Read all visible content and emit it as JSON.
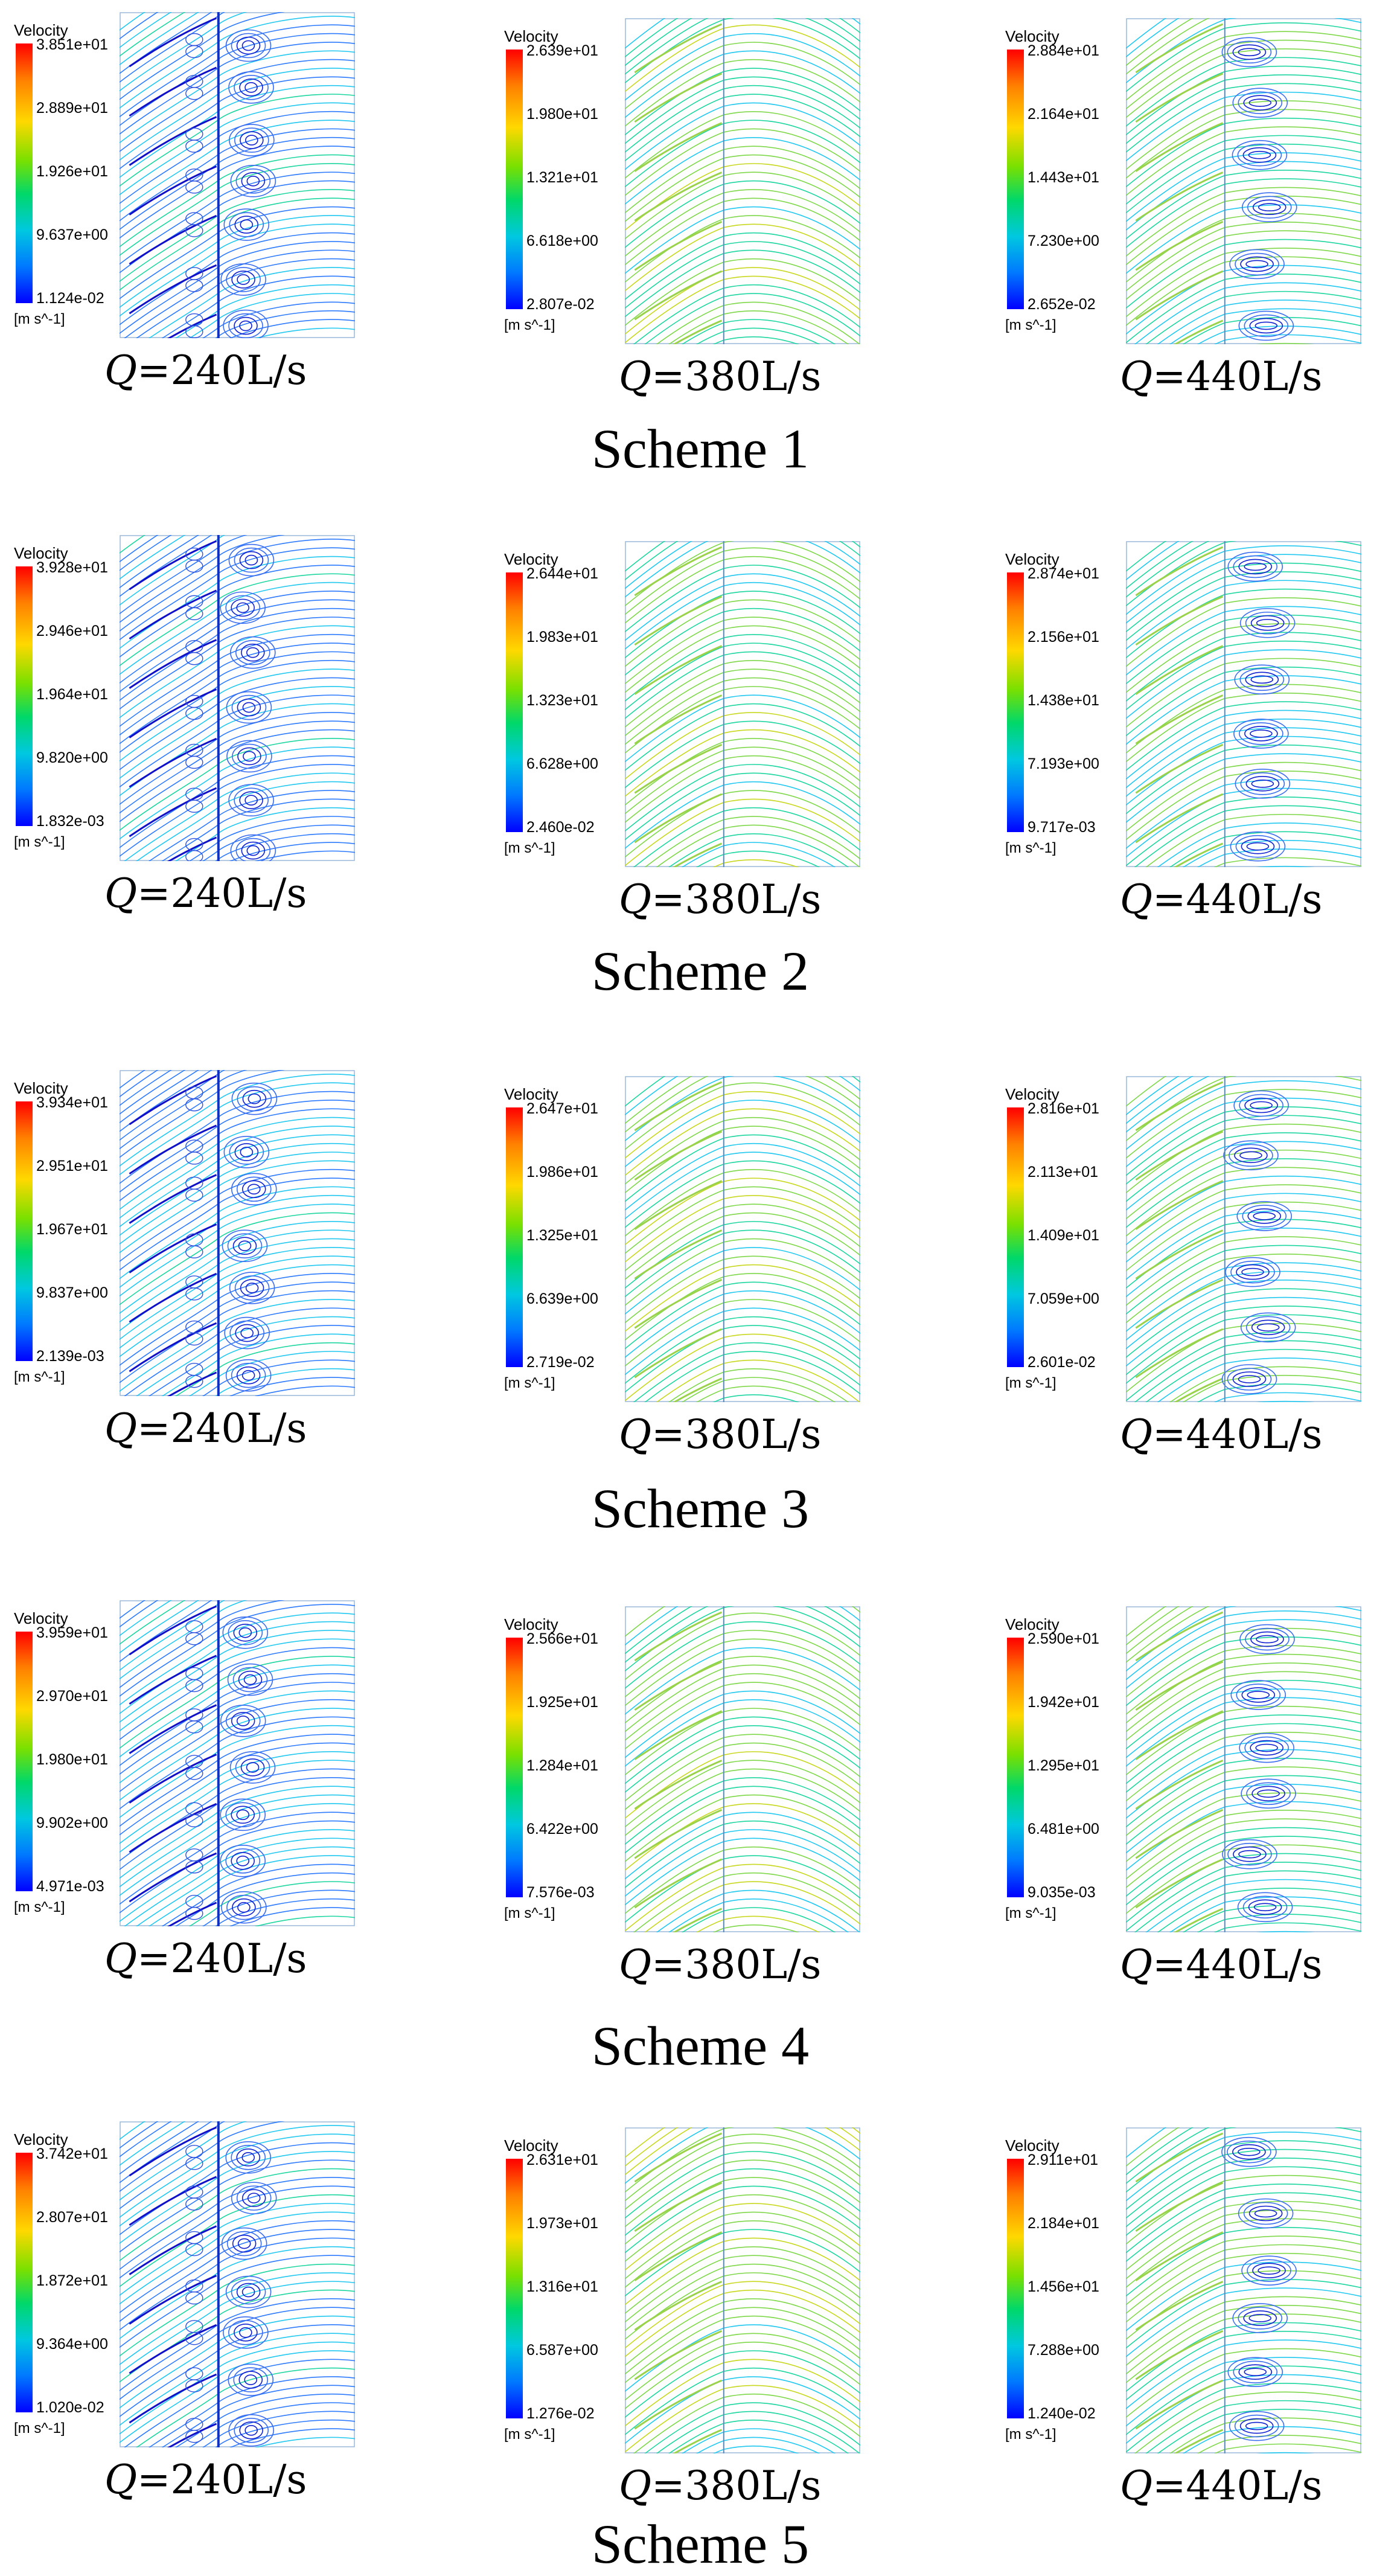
{
  "legend": {
    "title": "Velocity",
    "unit": "[m s^-1]"
  },
  "flow_prefix": "Q",
  "schemes": [
    {
      "title": "Scheme 1",
      "panels": [
        {
          "flow": "=240L/s",
          "ticks": [
            "3.851e+01",
            "2.889e+01",
            "1.926e+01",
            "9.637e+00",
            "1.124e-02"
          ],
          "pattern": "vortex"
        },
        {
          "flow": "=380L/s",
          "ticks": [
            "2.639e+01",
            "1.980e+01",
            "1.321e+01",
            "6.618e+00",
            "2.807e-02"
          ],
          "pattern": "smooth"
        },
        {
          "flow": "=440L/s",
          "ticks": [
            "2.884e+01",
            "2.164e+01",
            "1.443e+01",
            "7.230e+00",
            "2.652e-02"
          ],
          "pattern": "separated"
        }
      ]
    },
    {
      "title": "Scheme 2",
      "panels": [
        {
          "flow": "=240L/s",
          "ticks": [
            "3.928e+01",
            "2.946e+01",
            "1.964e+01",
            "9.820e+00",
            "1.832e-03"
          ],
          "pattern": "vortex"
        },
        {
          "flow": "=380L/s",
          "ticks": [
            "2.644e+01",
            "1.983e+01",
            "1.323e+01",
            "6.628e+00",
            "2.460e-02"
          ],
          "pattern": "smooth"
        },
        {
          "flow": "=440L/s",
          "ticks": [
            "2.874e+01",
            "2.156e+01",
            "1.438e+01",
            "7.193e+00",
            "9.717e-03"
          ],
          "pattern": "separated"
        }
      ]
    },
    {
      "title": "Scheme 3",
      "panels": [
        {
          "flow": "=240L/s",
          "ticks": [
            "3.934e+01",
            "2.951e+01",
            "1.967e+01",
            "9.837e+00",
            "2.139e-03"
          ],
          "pattern": "vortex"
        },
        {
          "flow": "=380L/s",
          "ticks": [
            "2.647e+01",
            "1.986e+01",
            "1.325e+01",
            "6.639e+00",
            "2.719e-02"
          ],
          "pattern": "smooth"
        },
        {
          "flow": "=440L/s",
          "ticks": [
            "2.816e+01",
            "2.113e+01",
            "1.409e+01",
            "7.059e+00",
            "2.601e-02"
          ],
          "pattern": "separated"
        }
      ]
    },
    {
      "title": "Scheme 4",
      "panels": [
        {
          "flow": "=240L/s",
          "ticks": [
            "3.959e+01",
            "2.970e+01",
            "1.980e+01",
            "9.902e+00",
            "4.971e-03"
          ],
          "pattern": "vortex"
        },
        {
          "flow": "=380L/s",
          "ticks": [
            "2.566e+01",
            "1.925e+01",
            "1.284e+01",
            "6.422e+00",
            "7.576e-03"
          ],
          "pattern": "smooth"
        },
        {
          "flow": "=440L/s",
          "ticks": [
            "2.590e+01",
            "1.942e+01",
            "1.295e+01",
            "6.481e+00",
            "9.035e-03"
          ],
          "pattern": "separated"
        }
      ]
    },
    {
      "title": "Scheme 5",
      "panels": [
        {
          "flow": "=240L/s",
          "ticks": [
            "3.742e+01",
            "2.807e+01",
            "1.872e+01",
            "9.364e+00",
            "1.020e-02"
          ],
          "pattern": "vortex"
        },
        {
          "flow": "=380L/s",
          "ticks": [
            "2.631e+01",
            "1.973e+01",
            "1.316e+01",
            "6.587e+00",
            "1.276e-02"
          ],
          "pattern": "smooth"
        },
        {
          "flow": "=440L/s",
          "ticks": [
            "2.911e+01",
            "2.184e+01",
            "1.456e+01",
            "7.288e+00",
            "1.240e-02"
          ],
          "pattern": "separated"
        }
      ]
    }
  ]
}
